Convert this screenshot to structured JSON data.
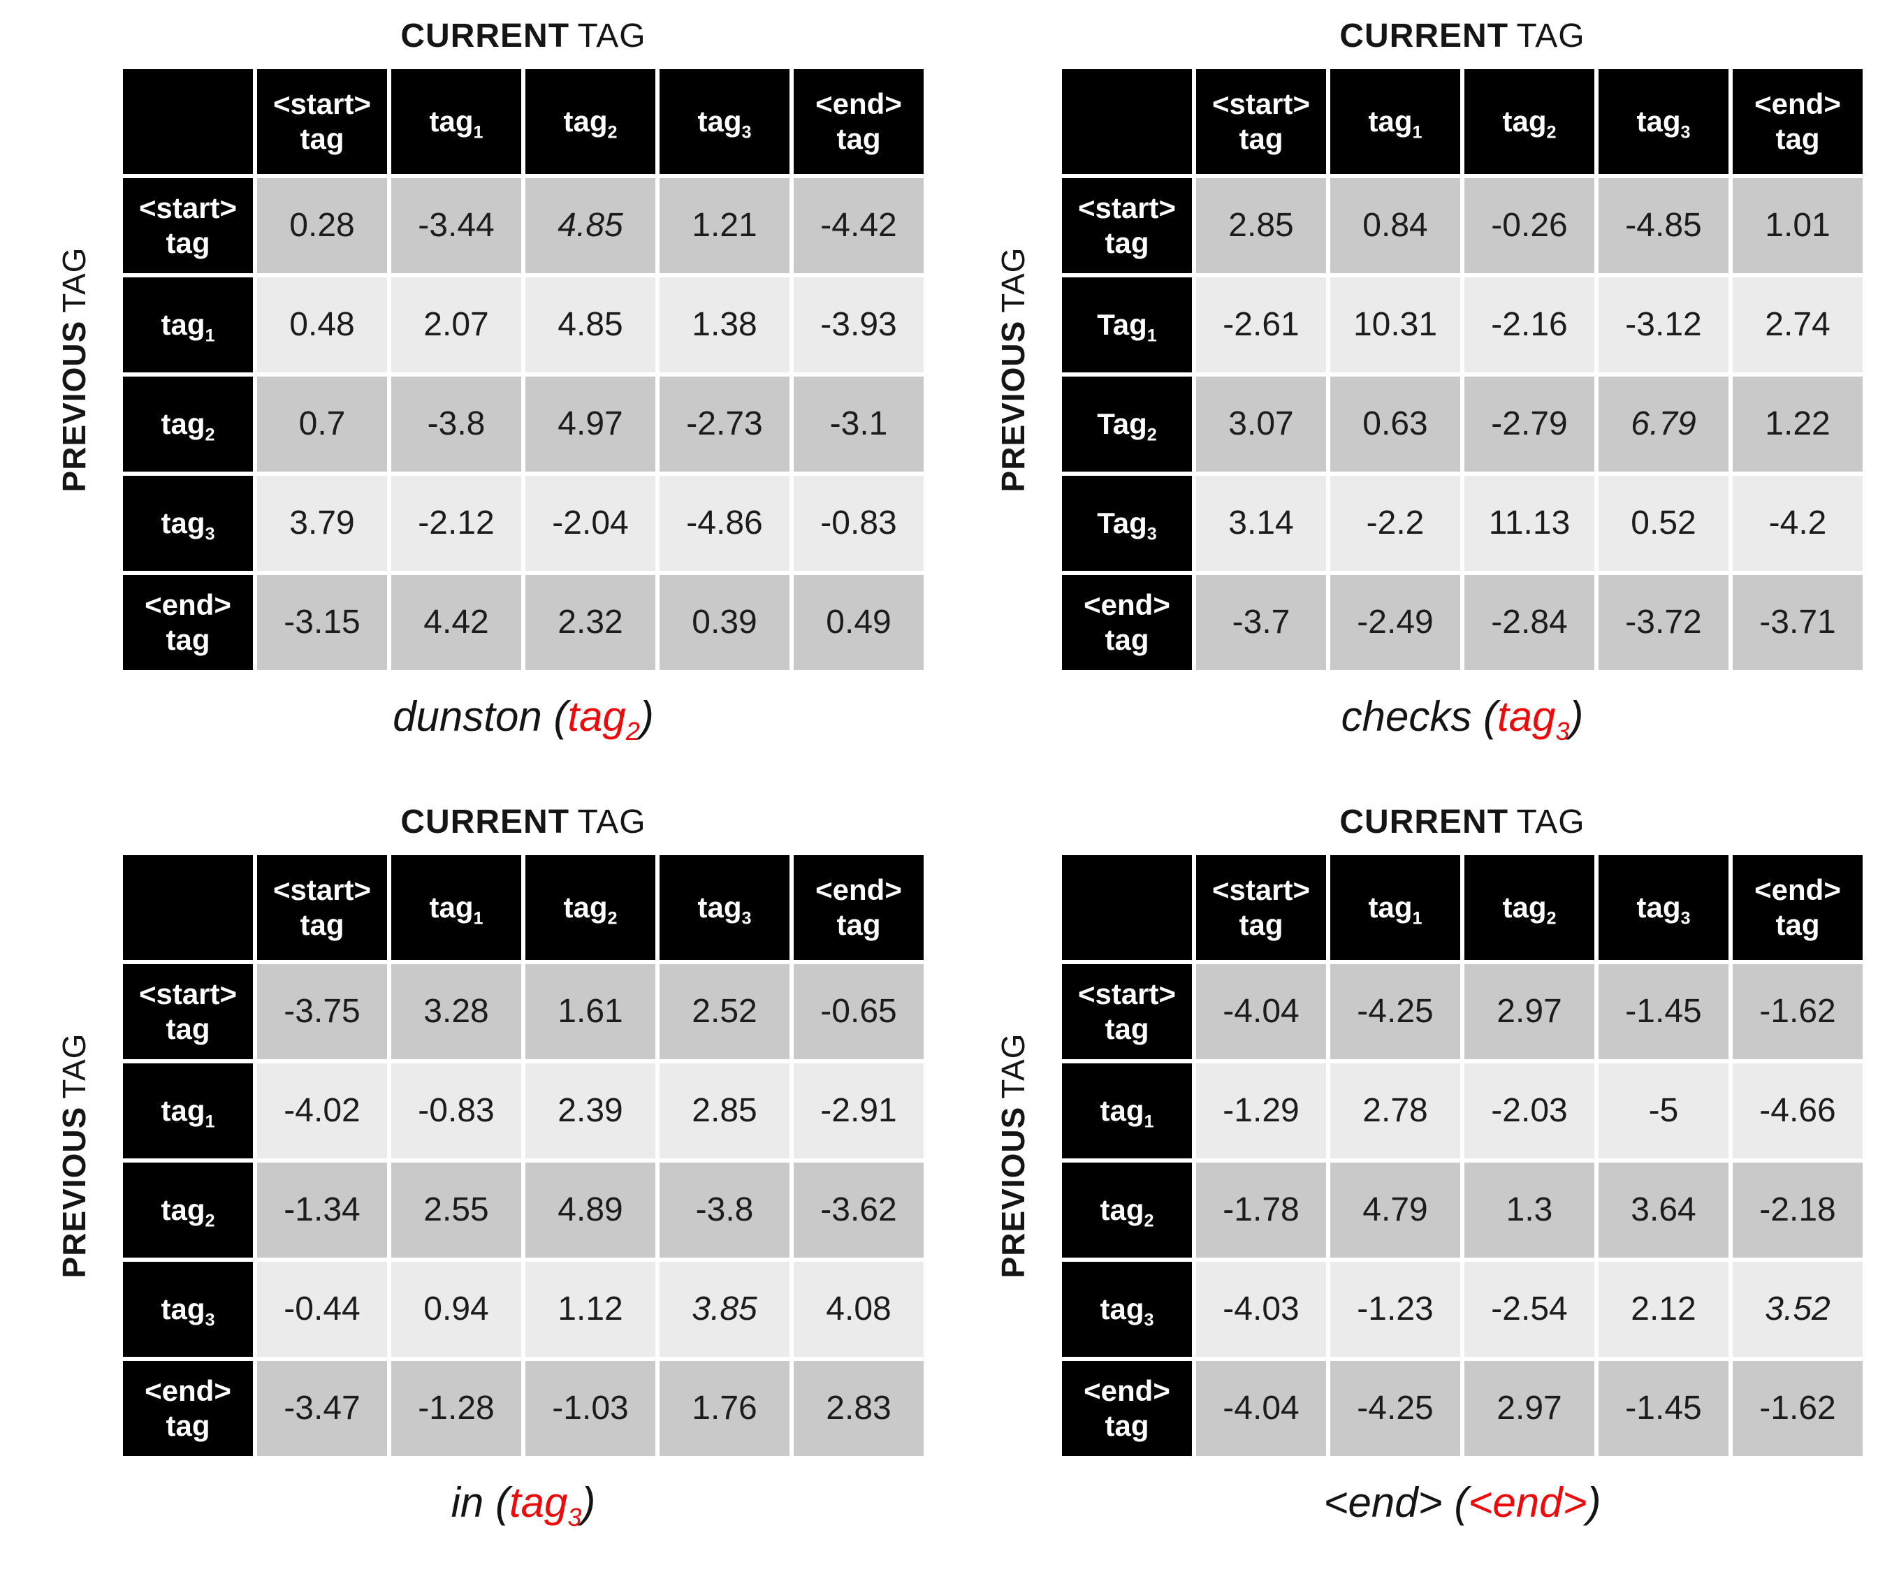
{
  "colors": {
    "background": "#ffffff",
    "header_bg": "#000000",
    "header_text": "#ffffff",
    "row_dark": "#c9c9c9",
    "row_light": "#ebebeb",
    "value_text": "#1c1c1c",
    "highlight_red": "#ee0a0a"
  },
  "axis_labels": {
    "current_strong": "CURRENT",
    "current_light": "TAG",
    "previous_strong": "PREVIOUS",
    "previous_light": "TAG"
  },
  "col_headers": [
    [
      {
        "t": "<start>"
      },
      {
        "br": true
      },
      {
        "t": "tag"
      }
    ],
    [
      {
        "t": "tag"
      },
      {
        "sub": "1"
      }
    ],
    [
      {
        "t": "tag"
      },
      {
        "sub": "2"
      }
    ],
    [
      {
        "t": "tag"
      },
      {
        "sub": "3"
      }
    ],
    [
      {
        "t": "<end>"
      },
      {
        "br": true
      },
      {
        "t": "tag"
      }
    ]
  ],
  "tables": [
    {
      "word": "dunston",
      "caption": [
        {
          "t": "dunston ("
        },
        {
          "t": "tag",
          "red": true
        },
        {
          "sub": "2",
          "red": true
        },
        {
          "t": ")"
        }
      ],
      "row_labels": [
        [
          {
            "t": "<start>"
          },
          {
            "br": true
          },
          {
            "t": "tag"
          }
        ],
        [
          {
            "t": "tag"
          },
          {
            "sub": "1"
          }
        ],
        [
          {
            "t": "tag"
          },
          {
            "sub": "2"
          }
        ],
        [
          {
            "t": "tag"
          },
          {
            "sub": "3"
          }
        ],
        [
          {
            "t": "<end>"
          },
          {
            "br": true
          },
          {
            "t": "tag"
          }
        ]
      ],
      "values": [
        [
          "0.28",
          "-3.44",
          "4.85",
          "1.21",
          "-4.42"
        ],
        [
          "0.48",
          "2.07",
          "4.85",
          "1.38",
          "-3.93"
        ],
        [
          "0.7",
          "-3.8",
          "4.97",
          "-2.73",
          "-3.1"
        ],
        [
          "3.79",
          "-2.12",
          "-2.04",
          "-4.86",
          "-0.83"
        ],
        [
          "-3.15",
          "4.42",
          "2.32",
          "0.39",
          "0.49"
        ]
      ],
      "red_cell": {
        "row": 0,
        "col": 2
      }
    },
    {
      "word": "checks",
      "caption": [
        {
          "t": "checks ("
        },
        {
          "t": "tag",
          "red": true
        },
        {
          "sub": "3",
          "red": true
        },
        {
          "t": ")"
        }
      ],
      "row_labels": [
        [
          {
            "t": "<start>"
          },
          {
            "br": true
          },
          {
            "t": "tag"
          }
        ],
        [
          {
            "t": "Tag"
          },
          {
            "sub": "1"
          }
        ],
        [
          {
            "t": "Tag"
          },
          {
            "sub": "2"
          }
        ],
        [
          {
            "t": "Tag"
          },
          {
            "sub": "3"
          }
        ],
        [
          {
            "t": "<end>"
          },
          {
            "br": true
          },
          {
            "t": "tag"
          }
        ]
      ],
      "values": [
        [
          "2.85",
          "0.84",
          "-0.26",
          "-4.85",
          "1.01"
        ],
        [
          "-2.61",
          "10.31",
          "-2.16",
          "-3.12",
          "2.74"
        ],
        [
          "3.07",
          "0.63",
          "-2.79",
          "6.79",
          "1.22"
        ],
        [
          "3.14",
          "-2.2",
          "11.13",
          "0.52",
          "-4.2"
        ],
        [
          "-3.7",
          "-2.49",
          "-2.84",
          "-3.72",
          "-3.71"
        ]
      ],
      "red_cell": {
        "row": 2,
        "col": 3
      }
    },
    {
      "word": "in",
      "caption": [
        {
          "t": "in ("
        },
        {
          "t": "tag",
          "red": true
        },
        {
          "sub": "3",
          "red": true
        },
        {
          "t": ")"
        }
      ],
      "row_labels": [
        [
          {
            "t": "<start>"
          },
          {
            "br": true
          },
          {
            "t": "tag"
          }
        ],
        [
          {
            "t": "tag"
          },
          {
            "sub": "1"
          }
        ],
        [
          {
            "t": "tag"
          },
          {
            "sub": "2"
          }
        ],
        [
          {
            "t": "tag"
          },
          {
            "sub": "3"
          }
        ],
        [
          {
            "t": "<end>"
          },
          {
            "br": true
          },
          {
            "t": "tag"
          }
        ]
      ],
      "values": [
        [
          "-3.75",
          "3.28",
          "1.61",
          "2.52",
          "-0.65"
        ],
        [
          "-4.02",
          "-0.83",
          "2.39",
          "2.85",
          "-2.91"
        ],
        [
          "-1.34",
          "2.55",
          "4.89",
          "-3.8",
          "-3.62"
        ],
        [
          "-0.44",
          "0.94",
          "1.12",
          "3.85",
          "4.08"
        ],
        [
          "-3.47",
          "-1.28",
          "-1.03",
          "1.76",
          "2.83"
        ]
      ],
      "red_cell": {
        "row": 3,
        "col": 3
      }
    },
    {
      "word": "<end>",
      "caption": [
        {
          "t": "<end> ("
        },
        {
          "t": "<end>",
          "red": true
        },
        {
          "t": ")"
        }
      ],
      "row_labels": [
        [
          {
            "t": "<start>"
          },
          {
            "br": true
          },
          {
            "t": "tag"
          }
        ],
        [
          {
            "t": "tag"
          },
          {
            "sub": "1"
          }
        ],
        [
          {
            "t": "tag"
          },
          {
            "sub": "2"
          }
        ],
        [
          {
            "t": "tag"
          },
          {
            "sub": "3"
          }
        ],
        [
          {
            "t": "<end>"
          },
          {
            "br": true
          },
          {
            "t": "tag"
          }
        ]
      ],
      "values": [
        [
          "-4.04",
          "-4.25",
          "2.97",
          "-1.45",
          "-1.62"
        ],
        [
          "-1.29",
          "2.78",
          "-2.03",
          "-5",
          "-4.66"
        ],
        [
          "-1.78",
          "4.79",
          "1.3",
          "3.64",
          "-2.18"
        ],
        [
          "-4.03",
          "-1.23",
          "-2.54",
          "2.12",
          "3.52"
        ],
        [
          "-4.04",
          "-4.25",
          "2.97",
          "-1.45",
          "-1.62"
        ]
      ],
      "red_cell": {
        "row": 3,
        "col": 4
      }
    }
  ]
}
